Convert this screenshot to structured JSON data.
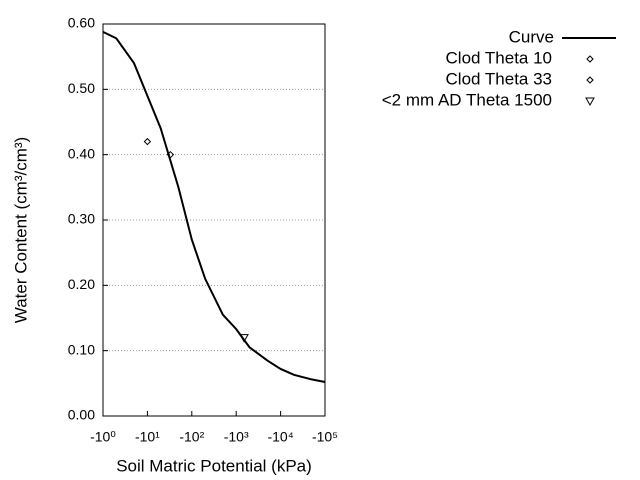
{
  "chart_data": {
    "type": "line",
    "xlabel": "Soil Matric Potential (kPa)",
    "ylabel": "Water Content (cm³/cm³)",
    "xlog": true,
    "xlim": [
      -1,
      -100000
    ],
    "xticks": [
      {
        "value": -1,
        "label": "-10⁰"
      },
      {
        "value": -10,
        "label": "-10¹"
      },
      {
        "value": -100,
        "label": "-10²"
      },
      {
        "value": -1000,
        "label": "-10³"
      },
      {
        "value": -10000,
        "label": "-10⁴"
      },
      {
        "value": -100000,
        "label": "-10⁵"
      }
    ],
    "ylim": [
      0,
      0.6
    ],
    "yticks": [
      {
        "value": 0,
        "label": "0.00"
      },
      {
        "value": 0.1,
        "label": "0.10"
      },
      {
        "value": 0.2,
        "label": "0.20"
      },
      {
        "value": 0.3,
        "label": "0.30"
      },
      {
        "value": 0.4,
        "label": "0.40"
      },
      {
        "value": 0.5,
        "label": "0.50"
      },
      {
        "value": 0.6,
        "label": "0.60"
      }
    ],
    "grid": true,
    "legend": "upper right",
    "series": [
      {
        "name": "Curve",
        "marker": "line",
        "color": "#000000",
        "x": [
          -1,
          -2,
          -5,
          -10,
          -20,
          -50,
          -100,
          -200,
          -500,
          -1000,
          -2000,
          -5000,
          -10000,
          -20000,
          -50000,
          -100000
        ],
        "values": [
          0.588,
          0.578,
          0.54,
          0.49,
          0.44,
          0.35,
          0.27,
          0.21,
          0.155,
          0.133,
          0.105,
          0.085,
          0.072,
          0.063,
          0.056,
          0.052
        ]
      },
      {
        "name": "Clod Theta 10",
        "marker": "diamond",
        "color": "#000000",
        "x": [
          -10
        ],
        "values": [
          0.42
        ]
      },
      {
        "name": "Clod Theta 33",
        "marker": "diamond",
        "color": "#000000",
        "x": [
          -33
        ],
        "values": [
          0.4
        ]
      },
      {
        "name": "<2 mm AD Theta 1500",
        "marker": "triangle",
        "color": "#000000",
        "x": [
          -1500
        ],
        "values": [
          0.12
        ]
      }
    ]
  }
}
